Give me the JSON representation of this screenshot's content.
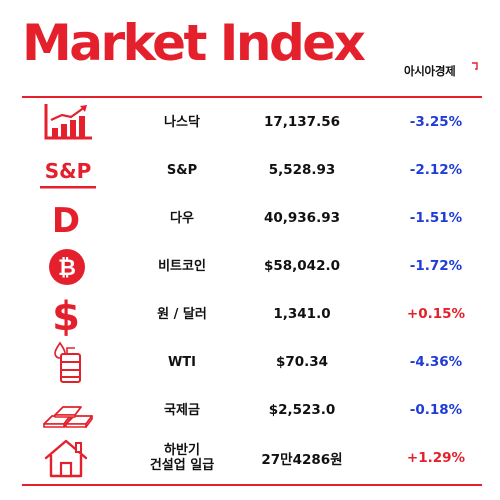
{
  "header": {
    "title": "Market Index",
    "brand": "아시아경제"
  },
  "colors": {
    "accent": "#e4202c",
    "negative": "#1f3cd6",
    "positive": "#e4202c"
  },
  "rows": [
    {
      "icon": "bar-chart-icon",
      "name": "나스닥",
      "value": "17,137.56",
      "change": "-3.25%",
      "direction": "down"
    },
    {
      "icon": "sp-logo-icon",
      "name": "S&P",
      "value": "5,528.93",
      "change": "-2.12%",
      "direction": "down",
      "icon_text": "S&P"
    },
    {
      "icon": "dow-d-icon",
      "name": "다우",
      "value": "40,936.93",
      "change": "-1.51%",
      "direction": "down",
      "icon_text": "D"
    },
    {
      "icon": "bitcoin-icon",
      "name": "비트코인",
      "value": "$58,042.0",
      "change": "-1.72%",
      "direction": "down"
    },
    {
      "icon": "dollar-sign-icon",
      "name": "원 / 달러",
      "value": "1,341.0",
      "change": "+0.15%",
      "direction": "up",
      "icon_text": "$"
    },
    {
      "icon": "oil-barrel-icon",
      "name": "WTI",
      "value": "$70.34",
      "change": "-4.36%",
      "direction": "down"
    },
    {
      "icon": "gold-bars-icon",
      "name": "국제금",
      "value": "$2,523.0",
      "change": "-0.18%",
      "direction": "down"
    },
    {
      "icon": "house-icon",
      "name": "하반기\n건설업 일급",
      "value": "27만4286원",
      "change": "+1.29%",
      "direction": "up"
    }
  ]
}
